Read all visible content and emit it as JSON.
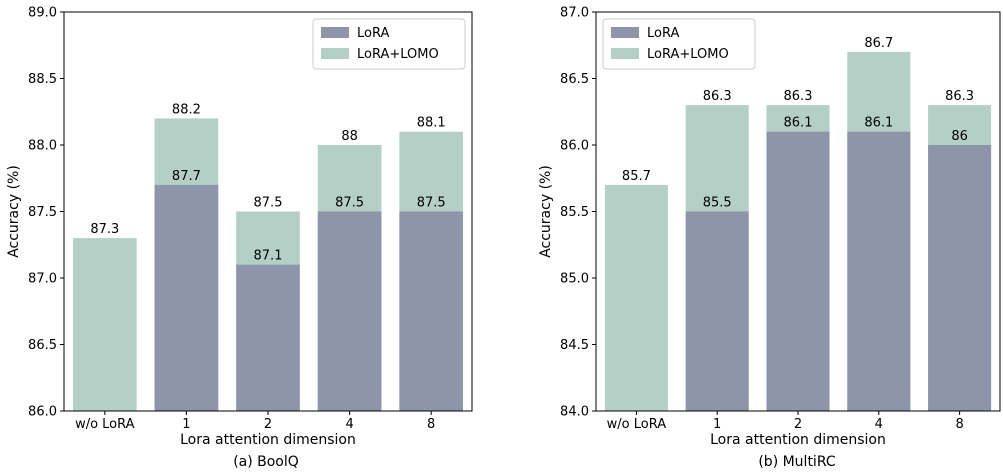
{
  "chart_data": [
    {
      "type": "bar",
      "caption": "(a) BoolQ",
      "xlabel": "Lora attention dimension",
      "ylabel": "Accuracy (%)",
      "ylim": [
        86.0,
        89.0
      ],
      "yticks": [
        "86.0",
        "86.5",
        "87.0",
        "87.5",
        "88.0",
        "88.5",
        "89.0"
      ],
      "categories": [
        "w/o LoRA",
        "1",
        "2",
        "4",
        "8"
      ],
      "legend_position": "top-right",
      "series": [
        {
          "name": "LoRA+LOMO",
          "color": "#b4cfc6",
          "values": [
            87.3,
            88.2,
            87.5,
            88.0,
            88.1
          ],
          "labels": [
            "87.3",
            "88.2",
            "87.5",
            "88",
            "88.1"
          ]
        },
        {
          "name": "LoRA",
          "color": "#8e95ab",
          "values": [
            null,
            87.7,
            87.1,
            87.5,
            87.5
          ],
          "labels": [
            "",
            "87.7",
            "87.1",
            "87.5",
            "87.5"
          ]
        }
      ]
    },
    {
      "type": "bar",
      "caption": "(b) MultiRC",
      "xlabel": "Lora attention dimension",
      "ylabel": "Accuracy (%)",
      "ylim": [
        84.0,
        87.0
      ],
      "yticks": [
        "84.0",
        "84.5",
        "85.0",
        "85.5",
        "86.0",
        "86.5",
        "87.0"
      ],
      "categories": [
        "w/o LoRA",
        "1",
        "2",
        "4",
        "8"
      ],
      "legend_position": "top-left",
      "series": [
        {
          "name": "LoRA+LOMO",
          "color": "#b4cfc6",
          "values": [
            85.7,
            86.3,
            86.3,
            86.7,
            86.3
          ],
          "labels": [
            "85.7",
            "86.3",
            "86.3",
            "86.7",
            "86.3"
          ]
        },
        {
          "name": "LoRA",
          "color": "#8e95ab",
          "values": [
            null,
            85.5,
            86.1,
            86.1,
            86.0
          ],
          "labels": [
            "",
            "85.5",
            "86.1",
            "86.1",
            "86"
          ]
        }
      ]
    }
  ]
}
